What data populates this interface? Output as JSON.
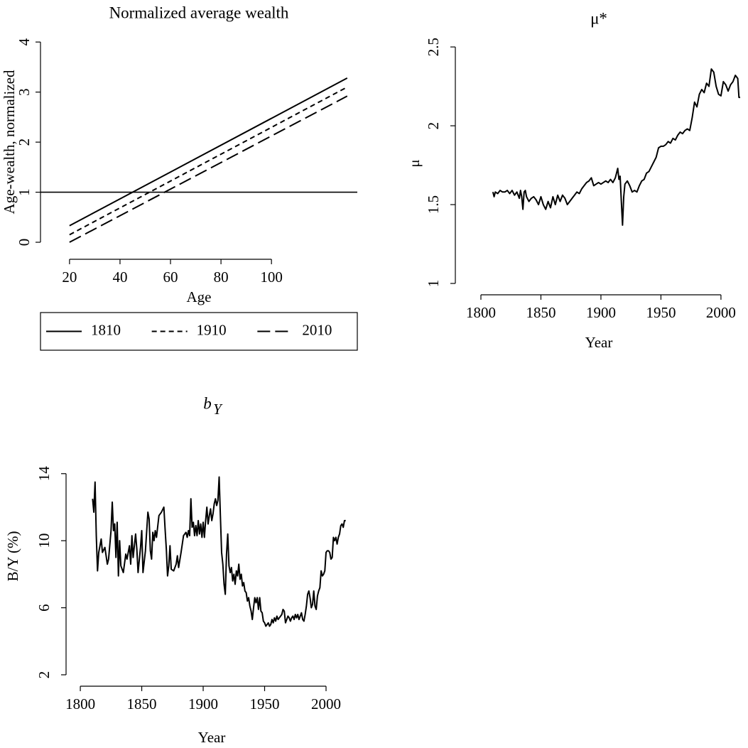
{
  "chart_data": [
    {
      "type": "line",
      "title": "Normalized average wealth",
      "x_label": "Age",
      "y_label": "Age-wealth, normalized",
      "x": [
        20,
        130
      ],
      "series": [
        {
          "name": "1810",
          "color": "#000000",
          "line_style": "solid",
          "values": [
            0.33,
            3.28
          ]
        },
        {
          "name": "1910",
          "color": "#000000",
          "line_style": "dashed",
          "values": [
            0.15,
            3.1
          ]
        },
        {
          "name": "2010",
          "color": "#000000",
          "line_style": "longdash",
          "values": [
            0.0,
            2.92
          ]
        }
      ],
      "hline": 1,
      "xlim": [
        8.5,
        134
      ],
      "ylim": [
        -0.34,
        4.13
      ],
      "xticks": [
        20,
        40,
        60,
        80,
        100
      ],
      "yticks": [
        0,
        1,
        2,
        3,
        4
      ],
      "legend": "bottom"
    },
    {
      "type": "line",
      "title": "μ*",
      "x_label": "Year",
      "y_label": "μ",
      "x": [
        1810,
        1811,
        1812,
        1814,
        1816,
        1818,
        1820,
        1822,
        1824,
        1826,
        1828,
        1830,
        1832,
        1833,
        1834,
        1835,
        1836,
        1837,
        1838,
        1840,
        1842,
        1844,
        1846,
        1848,
        1850,
        1852,
        1854,
        1856,
        1858,
        1860,
        1862,
        1864,
        1866,
        1868,
        1870,
        1872,
        1874,
        1876,
        1878,
        1880,
        1882,
        1884,
        1886,
        1888,
        1890,
        1892,
        1894,
        1896,
        1898,
        1900,
        1902,
        1904,
        1906,
        1908,
        1910,
        1912,
        1914,
        1915,
        1916,
        1917,
        1918,
        1919,
        1920,
        1922,
        1924,
        1926,
        1928,
        1930,
        1932,
        1934,
        1936,
        1938,
        1940,
        1942,
        1944,
        1946,
        1948,
        1950,
        1952,
        1954,
        1956,
        1958,
        1960,
        1962,
        1964,
        1966,
        1968,
        1970,
        1972,
        1974,
        1976,
        1978,
        1980,
        1982,
        1984,
        1986,
        1988,
        1990,
        1992,
        1994,
        1996,
        1998,
        2000,
        2002,
        2004,
        2006,
        2008,
        2010,
        2012,
        2014,
        2015,
        2016
      ],
      "series": [
        {
          "color": "#000000",
          "line_style": "solid",
          "values": [
            1.58,
            1.55,
            1.58,
            1.57,
            1.59,
            1.58,
            1.58,
            1.59,
            1.57,
            1.59,
            1.56,
            1.58,
            1.54,
            1.59,
            1.55,
            1.47,
            1.58,
            1.59,
            1.55,
            1.52,
            1.54,
            1.55,
            1.53,
            1.5,
            1.55,
            1.5,
            1.47,
            1.52,
            1.48,
            1.55,
            1.5,
            1.56,
            1.52,
            1.56,
            1.54,
            1.5,
            1.52,
            1.54,
            1.56,
            1.58,
            1.57,
            1.6,
            1.62,
            1.64,
            1.65,
            1.67,
            1.62,
            1.63,
            1.64,
            1.63,
            1.64,
            1.65,
            1.64,
            1.66,
            1.64,
            1.67,
            1.73,
            1.66,
            1.68,
            1.52,
            1.37,
            1.55,
            1.63,
            1.65,
            1.62,
            1.58,
            1.59,
            1.58,
            1.62,
            1.65,
            1.66,
            1.7,
            1.71,
            1.74,
            1.77,
            1.8,
            1.86,
            1.87,
            1.87,
            1.88,
            1.9,
            1.89,
            1.92,
            1.91,
            1.94,
            1.96,
            1.95,
            1.97,
            1.98,
            1.97,
            2.05,
            2.15,
            2.12,
            2.2,
            2.23,
            2.21,
            2.27,
            2.25,
            2.36,
            2.34,
            2.25,
            2.2,
            2.19,
            2.28,
            2.26,
            2.22,
            2.26,
            2.28,
            2.32,
            2.3,
            2.18,
            2.18
          ]
        }
      ],
      "xlim": [
        1778.7,
        2017.8
      ],
      "ylim": [
        0.928,
        2.595
      ],
      "xticks": [
        1800,
        1850,
        1900,
        1950,
        2000
      ],
      "yticks": [
        1,
        1.5,
        2,
        2.5
      ]
    },
    {
      "type": "line",
      "title": "b",
      "title_subscript": "Y",
      "x_label": "Year",
      "y_label": "B/Y (%)",
      "x": [
        1810,
        1811,
        1812,
        1813,
        1814,
        1815,
        1817,
        1818,
        1820,
        1822,
        1823,
        1825,
        1826,
        1827,
        1828,
        1829,
        1830,
        1831,
        1832,
        1833,
        1835,
        1837,
        1838,
        1840,
        1841,
        1842,
        1843,
        1845,
        1846,
        1847,
        1849,
        1850,
        1851,
        1853,
        1855,
        1856,
        1857,
        1858,
        1859,
        1860,
        1861,
        1862,
        1864,
        1866,
        1868,
        1869,
        1870,
        1871,
        1872,
        1873,
        1874,
        1876,
        1878,
        1879,
        1880,
        1882,
        1884,
        1886,
        1887,
        1888,
        1889,
        1890,
        1891,
        1892,
        1893,
        1894,
        1895,
        1896,
        1897,
        1898,
        1899,
        1900,
        1901,
        1902,
        1903,
        1904,
        1905,
        1906,
        1907,
        1908,
        1909,
        1910,
        1911,
        1912,
        1913,
        1914,
        1915,
        1916,
        1917,
        1918,
        1919,
        1920,
        1921,
        1922,
        1923,
        1924,
        1925,
        1926,
        1927,
        1928,
        1929,
        1930,
        1931,
        1932,
        1933,
        1934,
        1935,
        1936,
        1937,
        1938,
        1939,
        1940,
        1941,
        1942,
        1943,
        1944,
        1945,
        1946,
        1947,
        1948,
        1949,
        1950,
        1951,
        1952,
        1953,
        1954,
        1955,
        1956,
        1957,
        1958,
        1959,
        1960,
        1961,
        1962,
        1963,
        1964,
        1965,
        1966,
        1967,
        1968,
        1969,
        1970,
        1971,
        1972,
        1973,
        1974,
        1975,
        1976,
        1977,
        1978,
        1979,
        1980,
        1981,
        1982,
        1983,
        1984,
        1985,
        1986,
        1987,
        1988,
        1989,
        1990,
        1991,
        1992,
        1993,
        1994,
        1995,
        1996,
        1997,
        1998,
        1999,
        2000,
        2001,
        2002,
        2003,
        2004,
        2005,
        2006,
        2007,
        2008,
        2009,
        2010,
        2011,
        2012,
        2013,
        2014,
        2015,
        2016
      ],
      "series": [
        {
          "color": "#000000",
          "line_style": "solid",
          "values": [
            12.5,
            11.7,
            13.5,
            10.3,
            8.2,
            9.3,
            10.1,
            9.3,
            9.6,
            8.6,
            8.9,
            10.6,
            12.3,
            10.6,
            11.0,
            9.0,
            11.1,
            7.9,
            10.0,
            8.5,
            8.1,
            9.2,
            8.9,
            9.7,
            8.6,
            10.3,
            9.0,
            10.4,
            9.5,
            8.1,
            9.6,
            10.6,
            8.1,
            9.4,
            11.7,
            11.3,
            9.4,
            8.9,
            10.5,
            10.0,
            10.6,
            10.2,
            11.5,
            11.7,
            12.0,
            10.7,
            9.5,
            7.9,
            8.5,
            9.7,
            8.3,
            8.2,
            8.6,
            9.1,
            8.4,
            9.3,
            10.3,
            10.5,
            10.2,
            10.6,
            10.3,
            12.5,
            10.8,
            11.1,
            10.3,
            10.9,
            10.3,
            11.2,
            10.4,
            11.0,
            10.2,
            11.1,
            10.2,
            11.2,
            12.0,
            11.0,
            11.5,
            11.9,
            11.2,
            11.6,
            12.2,
            12.5,
            12.1,
            12.4,
            13.8,
            11.5,
            9.3,
            8.6,
            7.4,
            6.8,
            9.2,
            10.4,
            8.5,
            8.1,
            8.4,
            7.6,
            8.0,
            7.4,
            8.2,
            7.9,
            8.6,
            7.7,
            8.0,
            7.3,
            7.5,
            7.0,
            6.9,
            6.4,
            6.6,
            6.1,
            5.8,
            5.3,
            6.0,
            6.6,
            6.3,
            6.6,
            5.9,
            6.6,
            5.8,
            5.7,
            5.2,
            5.1,
            4.9,
            5.0,
            5.1,
            4.9,
            5.0,
            5.3,
            5.1,
            5.4,
            5.2,
            5.5,
            5.3,
            5.4,
            5.5,
            5.6,
            5.9,
            5.8,
            5.1,
            5.3,
            5.5,
            5.4,
            5.2,
            5.4,
            5.5,
            5.3,
            5.6,
            5.4,
            5.6,
            5.3,
            5.5,
            5.7,
            5.3,
            5.2,
            5.6,
            6.1,
            6.8,
            7.0,
            6.6,
            6.0,
            6.2,
            7.0,
            6.1,
            5.9,
            6.7,
            7.0,
            7.2,
            8.2,
            7.9,
            8.0,
            8.2,
            9.3,
            9.4,
            9.4,
            9.3,
            8.9,
            9.0,
            10.2,
            10.0,
            10.2,
            9.8,
            10.2,
            10.4,
            10.9,
            11.0,
            10.8,
            11.2,
            11.2
          ]
        }
      ],
      "xlim": [
        1788.4,
        2026.6
      ],
      "ylim": [
        1.32,
        16.83
      ],
      "xticks": [
        1800,
        1850,
        1900,
        1950,
        2000
      ],
      "yticks": [
        2,
        6,
        10,
        14
      ]
    }
  ]
}
